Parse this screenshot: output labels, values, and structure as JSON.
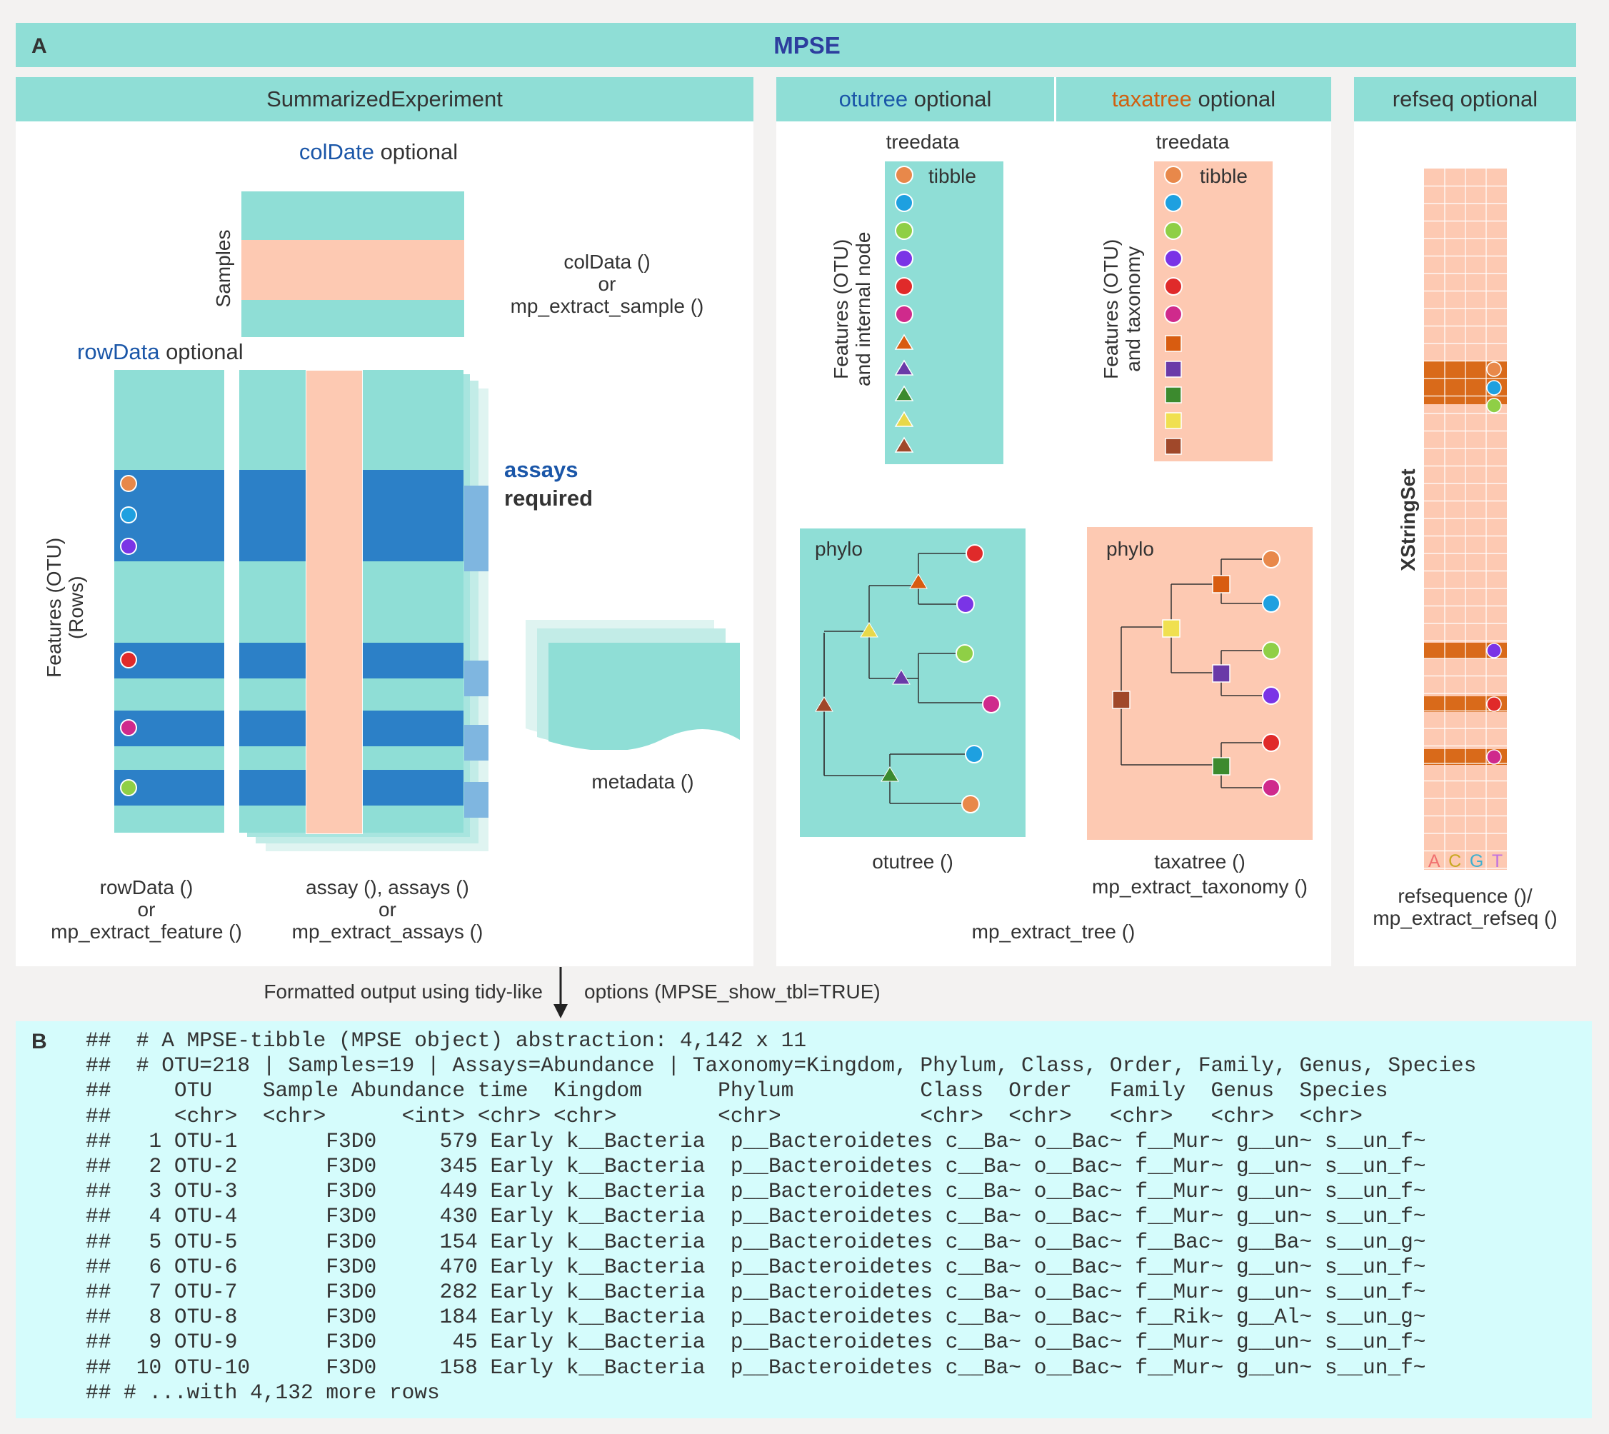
{
  "panel_a": {
    "letter": "A",
    "title": "MPSE",
    "se_header": "SummarizedExperiment",
    "coldata_kw": "colDate",
    "optional": "optional",
    "samples_label": "Samples",
    "coldata_fn": "colData ()",
    "or": "or",
    "mp_extract_sample": "mp_extract_sample ()",
    "rowdata_kw": "rowData",
    "features_rows_label1": "Features (OTU)",
    "features_rows_label2": "(Rows)",
    "assays_kw": "assays",
    "required": "required",
    "metadata_fn": "metadata ()",
    "rowdata_fn": "rowData ()",
    "mp_extract_feature": "mp_extract_feature ()",
    "assay_fn": "assay (), assays ()",
    "mp_extract_assays": "mp_extract_assays ()",
    "otutree_kw": "otutree",
    "taxatree_kw": "taxatree",
    "refseq_kw": "refseq",
    "treedata": "treedata",
    "tibble": "tibble",
    "otu_internal_label1": "Features (OTU)",
    "otu_internal_label2": "and internal node",
    "otu_taxonomy_label1": "Features (OTU)",
    "otu_taxonomy_label2": "and taxonomy",
    "phylo": "phylo",
    "otutree_fn": "otutree ()",
    "taxatree_fn": "taxatree ()",
    "mp_extract_taxonomy": "mp_extract_taxonomy ()",
    "mp_extract_tree": "mp_extract_tree ()",
    "xstringset": "XStringSet",
    "bases": [
      "A",
      "C",
      "G",
      "T"
    ],
    "refsequence_fn": "refsequence ()/",
    "mp_extract_refseq": "mp_extract_refseq ()",
    "arrow_left": "Formatted output using tidy-like",
    "arrow_right": "options (MPSE_show_tbl=TRUE)",
    "colors": {
      "teal": "#8fded6",
      "peach": "#fdc9b2",
      "blue": "#2c80c7",
      "orange_dot": "#e8884a",
      "sky_dot": "#1ea0e0",
      "green_dot": "#8fcf46",
      "purple_dot": "#7a34e6",
      "red_dot": "#e02a2a",
      "magenta_dot": "#cf2a8c"
    }
  },
  "panel_b": {
    "letter": "B",
    "lines": [
      "##  # A MPSE-tibble (MPSE object) abstraction: 4,142 x 11",
      "##  # OTU=218 | Samples=19 | Assays=Abundance | Taxonomy=Kingdom, Phylum, Class, Order, Family, Genus, Species",
      "##     OTU    Sample Abundance time  Kingdom      Phylum          Class  Order   Family  Genus  Species",
      "##     <chr>  <chr>      <int> <chr> <chr>        <chr>           <chr>  <chr>   <chr>   <chr>  <chr>",
      "##   1 OTU-1       F3D0     579 Early k__Bacteria  p__Bacteroidetes c__Ba~ o__Bac~ f__Mur~ g__un~ s__un_f~",
      "##   2 OTU-2       F3D0     345 Early k__Bacteria  p__Bacteroidetes c__Ba~ o__Bac~ f__Mur~ g__un~ s__un_f~",
      "##   3 OTU-3       F3D0     449 Early k__Bacteria  p__Bacteroidetes c__Ba~ o__Bac~ f__Mur~ g__un~ s__un_f~",
      "##   4 OTU-4       F3D0     430 Early k__Bacteria  p__Bacteroidetes c__Ba~ o__Bac~ f__Mur~ g__un~ s__un_f~",
      "##   5 OTU-5       F3D0     154 Early k__Bacteria  p__Bacteroidetes c__Ba~ o__Bac~ f__Bac~ g__Ba~ s__un_g~",
      "##   6 OTU-6       F3D0     470 Early k__Bacteria  p__Bacteroidetes c__Ba~ o__Bac~ f__Mur~ g__un~ s__un_f~",
      "##   7 OTU-7       F3D0     282 Early k__Bacteria  p__Bacteroidetes c__Ba~ o__Bac~ f__Mur~ g__un~ s__un_f~",
      "##   8 OTU-8       F3D0     184 Early k__Bacteria  p__Bacteroidetes c__Ba~ o__Bac~ f__Rik~ g__Al~ s__un_g~",
      "##   9 OTU-9       F3D0      45 Early k__Bacteria  p__Bacteroidetes c__Ba~ o__Bac~ f__Mur~ g__un~ s__un_f~",
      "##  10 OTU-10      F3D0     158 Early k__Bacteria  p__Bacteroidetes c__Ba~ o__Bac~ f__Mur~ g__un~ s__un_f~",
      "## # ...with 4,132 more rows"
    ]
  }
}
